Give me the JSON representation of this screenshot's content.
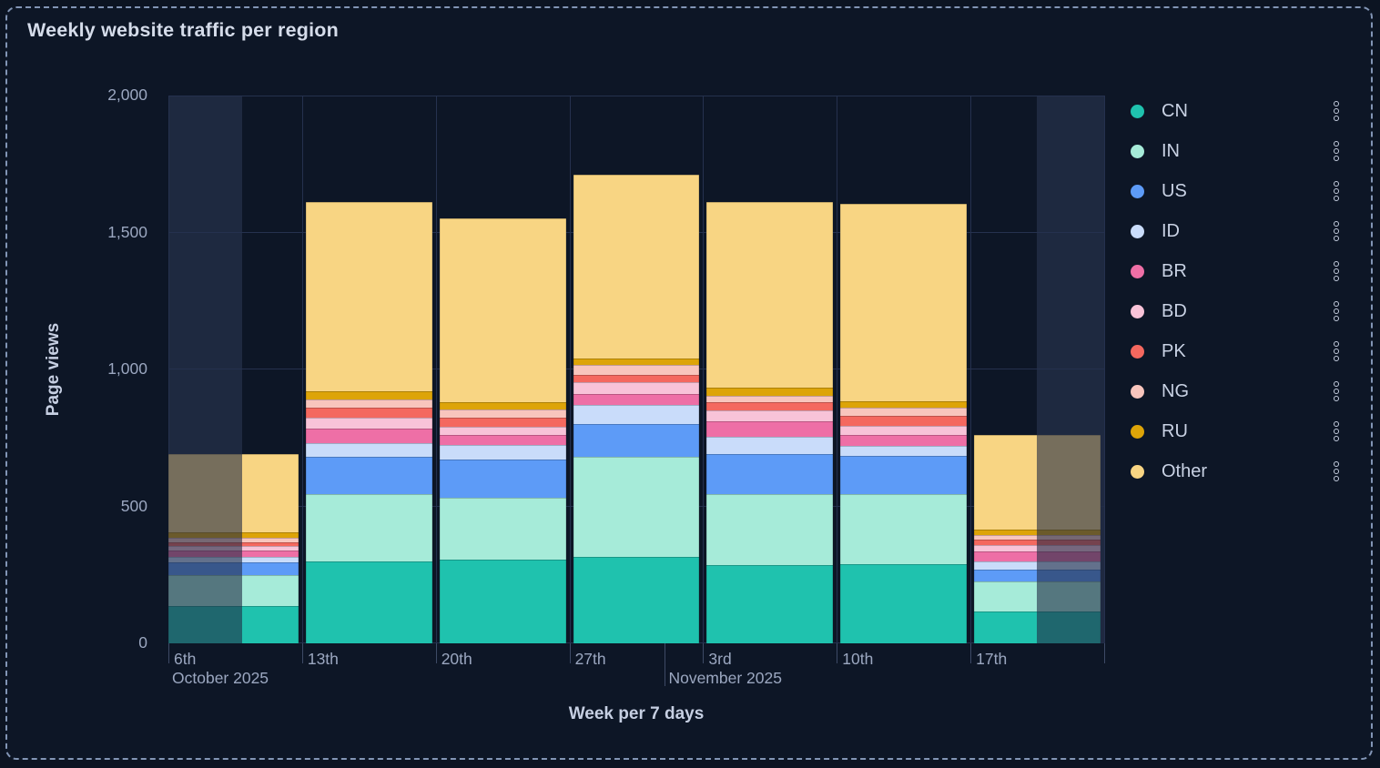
{
  "panel": {
    "title": "Weekly website traffic per region"
  },
  "chart_data": {
    "type": "bar",
    "stacked": true,
    "title": "Weekly website traffic per region",
    "xlabel": "Week per 7 days",
    "ylabel": "Page views",
    "ylim": [
      0,
      2000
    ],
    "grid": true,
    "legend_position": "right",
    "yticks": [
      "0",
      "500",
      "1,000",
      "1,500",
      "2,000"
    ],
    "ytick_values": [
      0,
      500,
      1000,
      1500,
      2000
    ],
    "categories": [
      "6th",
      "13th",
      "20th",
      "27th",
      "3rd",
      "10th",
      "17th"
    ],
    "month_annotations": [
      {
        "label": "October 2025",
        "x_frac": 0.0,
        "tick": false
      },
      {
        "label": "November 2025",
        "x_frac": 0.5306,
        "tick": true
      }
    ],
    "dim_bands_x_frac": [
      [
        0,
        0.0788
      ],
      [
        0.928,
        1.0
      ]
    ],
    "dim_band_color": "#1E2940",
    "series": [
      {
        "name": "CN",
        "color": "#1FC2AE",
        "values": [
          135,
          300,
          305,
          315,
          285,
          290,
          115
        ]
      },
      {
        "name": "IN",
        "color": "#A6EBD9",
        "values": [
          115,
          245,
          225,
          365,
          260,
          255,
          110
        ]
      },
      {
        "name": "US",
        "color": "#5D9BF7",
        "values": [
          45,
          135,
          140,
          120,
          145,
          140,
          45
        ]
      },
      {
        "name": "ID",
        "color": "#C9DCFA",
        "values": [
          20,
          50,
          55,
          70,
          65,
          35,
          30
        ]
      },
      {
        "name": "BR",
        "color": "#EE6FA6",
        "values": [
          25,
          55,
          35,
          40,
          55,
          40,
          35
        ]
      },
      {
        "name": "BD",
        "color": "#F8C3D8",
        "values": [
          15,
          40,
          30,
          45,
          40,
          35,
          25
        ]
      },
      {
        "name": "PK",
        "color": "#F4685F",
        "values": [
          15,
          35,
          35,
          25,
          30,
          35,
          20
        ]
      },
      {
        "name": "NG",
        "color": "#F8C5BD",
        "values": [
          15,
          30,
          30,
          35,
          25,
          30,
          15
        ]
      },
      {
        "name": "RU",
        "color": "#DDA408",
        "values": [
          20,
          30,
          25,
          25,
          30,
          25,
          20
        ]
      },
      {
        "name": "Other",
        "color": "#F8D583",
        "values": [
          285,
          690,
          670,
          670,
          675,
          720,
          345
        ]
      }
    ],
    "totals": [
      690,
      1610,
      1550,
      1710,
      1610,
      1605,
      760
    ]
  }
}
